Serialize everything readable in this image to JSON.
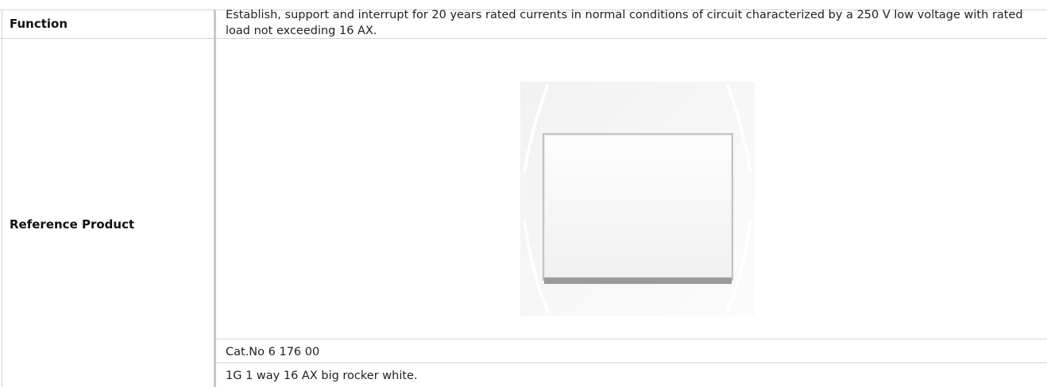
{
  "table": {
    "rows": [
      {
        "label": "Function",
        "text": "Establish, support and interrupt for 20 years rated currents in normal conditions of circuit characterized by a 250 V low voltage with rated load not exceeding 16 AX."
      },
      {
        "label": "Reference Product",
        "details": [
          "Cat.No 6 176 00",
          "1G 1 way 16 AX big rocker white."
        ]
      }
    ]
  }
}
